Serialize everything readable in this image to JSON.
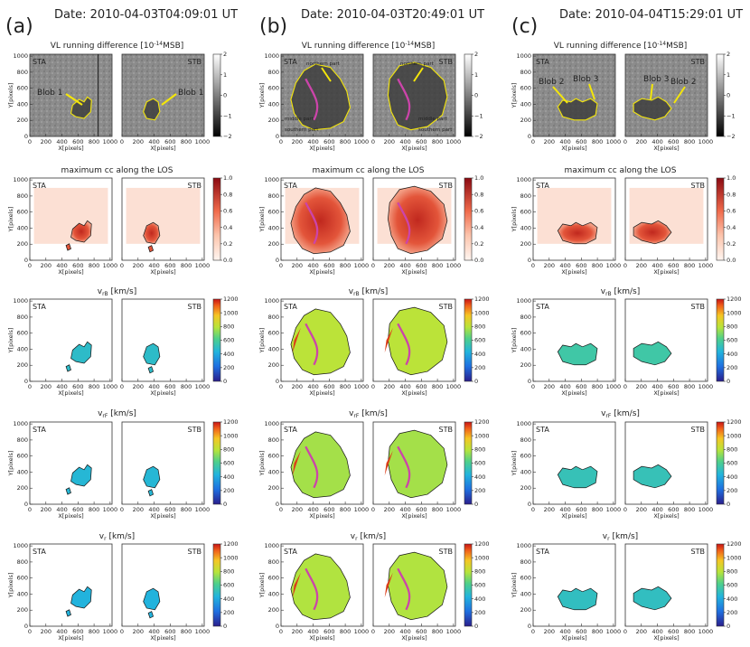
{
  "columns": [
    {
      "label": "(a)",
      "date": "Date: 2010-04-03T04:09:01 UT",
      "event": "a"
    },
    {
      "label": "(b)",
      "date": "Date: 2010-04-03T20:49:01 UT",
      "event": "b"
    },
    {
      "label": "(c)",
      "date": "Date: 2010-04-04T15:29:01 UT",
      "event": "c"
    }
  ],
  "panels": {
    "left": "STA",
    "right": "STB"
  },
  "annotations": {
    "a": {
      "left": [
        "Blob 1"
      ],
      "right": [
        "Blob 1"
      ]
    },
    "b": {
      "left": [
        "northern part",
        "middle part",
        "southern part"
      ],
      "right": [
        "northern part",
        "middle part",
        "southern part"
      ]
    },
    "c": {
      "left": [
        "Blob 2",
        "Blob 3"
      ],
      "right": [
        "Blob 3",
        "Blob 2"
      ]
    }
  },
  "chart_data": {
    "type": "heatmap",
    "xlabel": "X[pixels]",
    "ylabel": "Y[pixels]",
    "x_ticks": [
      "0",
      "200",
      "400",
      "600",
      "800",
      "1000"
    ],
    "y_ticks": [
      "0",
      "200",
      "400",
      "600",
      "800",
      "1000"
    ],
    "xlim": [
      0,
      1024
    ],
    "ylim": [
      0,
      1024
    ],
    "rows": [
      {
        "key": "vl",
        "title": "VL running difference [10",
        "title_exp": "-14",
        "title_end": "MSB]",
        "cmap": "gray",
        "vmin": -2,
        "vmax": 2,
        "cbar_ticks": [
          "2",
          "1",
          "0",
          "−1",
          "−2"
        ]
      },
      {
        "key": "cc",
        "title": "maximum cc along the LOS",
        "title_exp": "",
        "title_end": "",
        "cmap": "reds",
        "vmin": 0,
        "vmax": 1,
        "cbar_ticks": [
          "1.0",
          "0.8",
          "0.6",
          "0.4",
          "0.2",
          "0.0"
        ]
      },
      {
        "key": "vrb",
        "title": "v",
        "title_sub": "rB",
        "title_end": "  [km/s]",
        "cmap": "rainbow",
        "vmin": 0,
        "vmax": 1200,
        "cbar_ticks": [
          "1200",
          "1000",
          "800",
          "600",
          "400",
          "200",
          "0"
        ]
      },
      {
        "key": "vrf",
        "title": "v",
        "title_sub": "rF",
        "title_end": "  [km/s]",
        "cmap": "rainbow",
        "vmin": 0,
        "vmax": 1200,
        "cbar_ticks": [
          "1200",
          "1000",
          "800",
          "600",
          "400",
          "200",
          "0"
        ]
      },
      {
        "key": "vr",
        "title": "v",
        "title_sub": "r",
        "title_end": "  [km/s]",
        "cmap": "rainbow",
        "vmin": 0,
        "vmax": 1200,
        "cbar_ticks": [
          "1200",
          "1000",
          "800",
          "600",
          "400",
          "200",
          "0"
        ]
      }
    ],
    "approx_velocity_kms": {
      "a": {
        "vrb": 480,
        "vrf": 450,
        "vr": 430
      },
      "b": {
        "vrb": 800,
        "vrf": 760,
        "vr": 780
      },
      "c": {
        "vrb": 560,
        "vrf": 520,
        "vr": 500
      }
    }
  },
  "colors": {
    "gray_low": "#000000",
    "gray_high": "#ffffff",
    "reds_low": "#fff5f0",
    "reds_high": "#a50f15",
    "contour": "#1a1a1a",
    "annot": "#f4e60a",
    "track": "#cc44aa"
  }
}
